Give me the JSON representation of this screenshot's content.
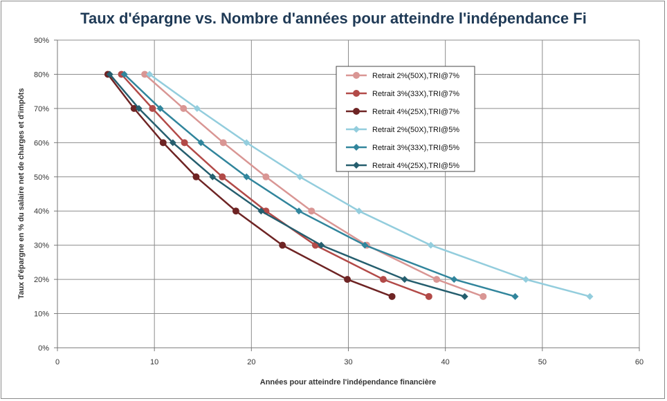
{
  "chart_data": {
    "type": "line",
    "title": "Taux d'épargne vs. Nombre d'années pour atteindre l'indépendance Fi",
    "xlabel": "Années pour atteindre l'indépendance  financière",
    "ylabel": "Taux d'épargne en % du salaire  net de charges et d'impôts",
    "xlim": [
      0,
      60
    ],
    "ylim": [
      0,
      90
    ],
    "x_ticks": [
      "0",
      "10",
      "20",
      "30",
      "40",
      "50",
      "60"
    ],
    "y_ticks": [
      "0%",
      "10%",
      "20%",
      "30%",
      "40%",
      "50%",
      "60%",
      "70%",
      "80%",
      "90%"
    ],
    "grid": true,
    "legend_position": "upper-right",
    "series": [
      {
        "name": "Retrait 2%(50X),TRI@7%",
        "color": "#d99694",
        "marker": "circle",
        "points": [
          [
            9.0,
            80
          ],
          [
            13.0,
            70
          ],
          [
            17.1,
            60
          ],
          [
            21.5,
            50
          ],
          [
            26.2,
            40
          ],
          [
            31.9,
            30
          ],
          [
            39.1,
            20
          ],
          [
            43.9,
            15
          ]
        ]
      },
      {
        "name": "Retrait 3%(33X),TRI@7%",
        "color": "#b24a48",
        "marker": "circle",
        "points": [
          [
            6.6,
            80
          ],
          [
            9.8,
            70
          ],
          [
            13.1,
            60
          ],
          [
            17.0,
            50
          ],
          [
            21.5,
            40
          ],
          [
            26.6,
            30
          ],
          [
            33.6,
            20
          ],
          [
            38.3,
            15
          ]
        ]
      },
      {
        "name": "Retrait 4%(25X),TRI@7%",
        "color": "#6e2424",
        "marker": "circle",
        "points": [
          [
            5.2,
            80
          ],
          [
            7.9,
            70
          ],
          [
            10.9,
            60
          ],
          [
            14.3,
            50
          ],
          [
            18.4,
            40
          ],
          [
            23.2,
            30
          ],
          [
            29.9,
            20
          ],
          [
            34.5,
            15
          ]
        ]
      },
      {
        "name": "Retrait 2%(50X),TRI@5%",
        "color": "#93cddd",
        "marker": "diamond",
        "points": [
          [
            9.5,
            80
          ],
          [
            14.4,
            70
          ],
          [
            19.5,
            60
          ],
          [
            25.0,
            50
          ],
          [
            31.1,
            40
          ],
          [
            38.5,
            30
          ],
          [
            48.3,
            20
          ],
          [
            54.9,
            15
          ]
        ]
      },
      {
        "name": "Retrait 3%(33X),TRI@5%",
        "color": "#31859c",
        "marker": "diamond",
        "points": [
          [
            6.9,
            80
          ],
          [
            10.6,
            70
          ],
          [
            14.8,
            60
          ],
          [
            19.5,
            50
          ],
          [
            24.9,
            40
          ],
          [
            31.7,
            30
          ],
          [
            40.9,
            20
          ],
          [
            47.2,
            15
          ]
        ]
      },
      {
        "name": "Retrait 4%(25X),TRI@5%",
        "color": "#255e6e",
        "marker": "diamond",
        "points": [
          [
            5.4,
            80
          ],
          [
            8.4,
            70
          ],
          [
            11.9,
            60
          ],
          [
            16.0,
            50
          ],
          [
            21.0,
            40
          ],
          [
            27.2,
            30
          ],
          [
            35.8,
            20
          ],
          [
            42.0,
            15
          ]
        ]
      }
    ]
  }
}
